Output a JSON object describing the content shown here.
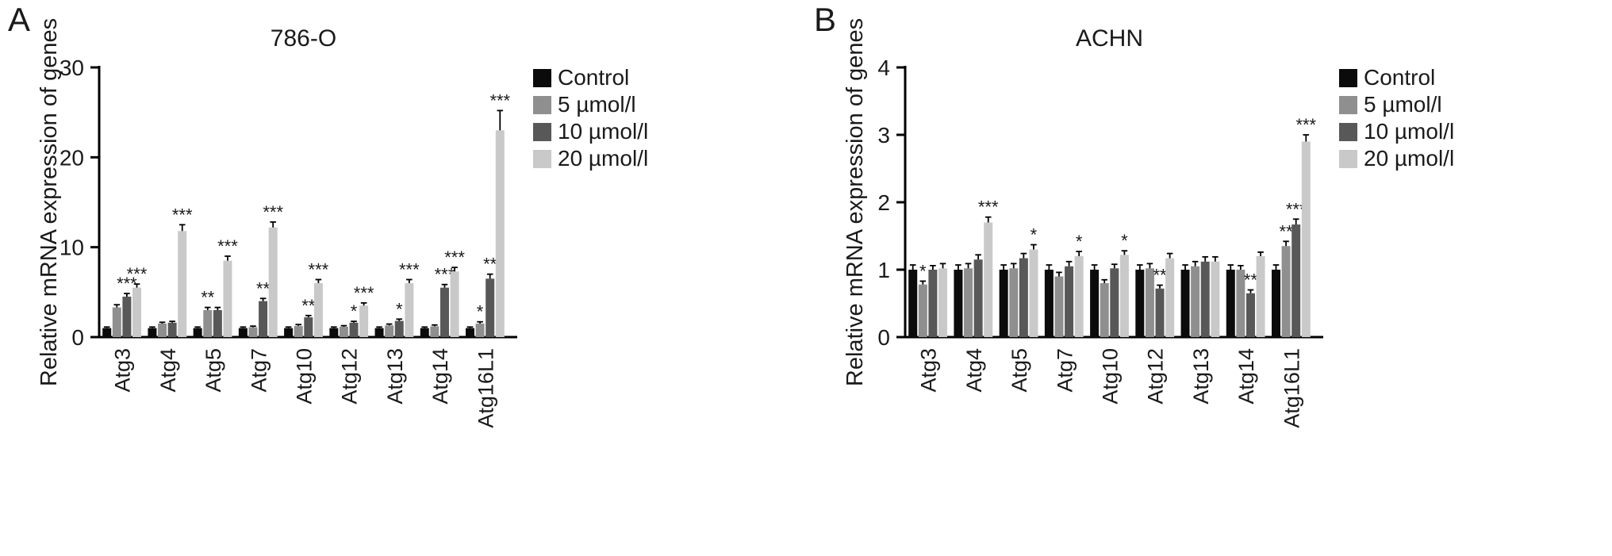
{
  "chart_data": [
    {
      "type": "bar",
      "panel_label": "A",
      "title": "786-O",
      "ylabel": "Relative mRNA expression of genes",
      "xlabel": "",
      "ylim": [
        0,
        30
      ],
      "yticks": [
        0,
        10,
        20,
        30
      ],
      "grid": false,
      "legend_position": "top-right",
      "categories": [
        "Atg3",
        "Atg4",
        "Atg5",
        "Atg7",
        "Atg10",
        "Atg12",
        "Atg13",
        "Atg14",
        "Atg16L1"
      ],
      "series": [
        {
          "name": "Control",
          "color": "#0b0b0b",
          "values": [
            1.0,
            1.0,
            1.0,
            1.0,
            1.0,
            1.0,
            1.0,
            1.0,
            1.0
          ],
          "errors": [
            0.12,
            0.12,
            0.12,
            0.12,
            0.12,
            0.12,
            0.12,
            0.12,
            0.12
          ],
          "sig": [
            "",
            "",
            "",
            "",
            "",
            "",
            "",
            "",
            ""
          ]
        },
        {
          "name": "5 µmol/l",
          "color": "#8f8f8f",
          "values": [
            3.3,
            1.5,
            3.0,
            1.1,
            1.25,
            1.15,
            1.3,
            1.2,
            1.5
          ],
          "errors": [
            0.3,
            0.15,
            0.3,
            0.12,
            0.15,
            0.12,
            0.15,
            0.15,
            0.2
          ],
          "sig": [
            "",
            "",
            "**",
            "",
            "",
            "",
            "",
            "",
            "*"
          ]
        },
        {
          "name": "10 µmol/l",
          "color": "#585858",
          "values": [
            4.5,
            1.6,
            3.0,
            4.0,
            2.2,
            1.6,
            1.8,
            5.5,
            6.5
          ],
          "errors": [
            0.35,
            0.15,
            0.3,
            0.3,
            0.2,
            0.15,
            0.2,
            0.35,
            0.5
          ],
          "sig": [
            "***",
            "",
            "",
            "**",
            "**",
            "*",
            "*",
            "***",
            "**"
          ]
        },
        {
          "name": "20 µmol/l",
          "color": "#c9c9c9",
          "values": [
            5.5,
            11.8,
            8.5,
            12.2,
            6.0,
            3.5,
            6.0,
            7.3,
            23.0
          ],
          "errors": [
            0.4,
            0.7,
            0.5,
            0.6,
            0.4,
            0.3,
            0.4,
            0.45,
            2.2
          ],
          "sig": [
            "***",
            "***",
            "***",
            "***",
            "***",
            "***",
            "***",
            "***",
            "***"
          ]
        }
      ]
    },
    {
      "type": "bar",
      "panel_label": "B",
      "title": "ACHN",
      "ylabel": "Relative mRNA expression of genes",
      "xlabel": "",
      "ylim": [
        0,
        4
      ],
      "yticks": [
        0,
        1,
        2,
        3,
        4
      ],
      "grid": false,
      "legend_position": "top-right",
      "categories": [
        "Atg3",
        "Atg4",
        "Atg5",
        "Atg7",
        "Atg10",
        "Atg12",
        "Atg13",
        "Atg14",
        "Atg16L1"
      ],
      "series": [
        {
          "name": "Control",
          "color": "#0b0b0b",
          "values": [
            1.0,
            1.0,
            1.0,
            1.0,
            1.0,
            1.0,
            1.0,
            1.0,
            1.0
          ],
          "errors": [
            0.07,
            0.07,
            0.07,
            0.07,
            0.07,
            0.07,
            0.07,
            0.07,
            0.07
          ],
          "sig": [
            "",
            "",
            "",
            "",
            "",
            "",
            "",
            "",
            ""
          ]
        },
        {
          "name": "5 µmol/l",
          "color": "#8f8f8f",
          "values": [
            0.78,
            1.02,
            1.02,
            0.9,
            0.8,
            1.02,
            1.05,
            1.0,
            1.35
          ],
          "errors": [
            0.05,
            0.07,
            0.07,
            0.06,
            0.05,
            0.07,
            0.07,
            0.06,
            0.07
          ],
          "sig": [
            "*",
            "",
            "",
            "",
            "",
            "",
            "",
            "",
            "**"
          ]
        },
        {
          "name": "10 µmol/l",
          "color": "#585858",
          "values": [
            1.0,
            1.15,
            1.17,
            1.05,
            1.02,
            0.72,
            1.12,
            0.65,
            1.67
          ],
          "errors": [
            0.06,
            0.07,
            0.07,
            0.07,
            0.06,
            0.05,
            0.07,
            0.05,
            0.08
          ],
          "sig": [
            "",
            "",
            "",
            "",
            "",
            "**",
            "",
            "**",
            "***"
          ]
        },
        {
          "name": "20 µmol/l",
          "color": "#c9c9c9",
          "values": [
            1.02,
            1.7,
            1.3,
            1.2,
            1.22,
            1.17,
            1.12,
            1.2,
            2.9
          ],
          "errors": [
            0.07,
            0.08,
            0.07,
            0.07,
            0.06,
            0.07,
            0.07,
            0.06,
            0.1
          ],
          "sig": [
            "",
            "***",
            "*",
            "*",
            "*",
            "",
            "",
            "",
            "***"
          ]
        }
      ]
    }
  ]
}
